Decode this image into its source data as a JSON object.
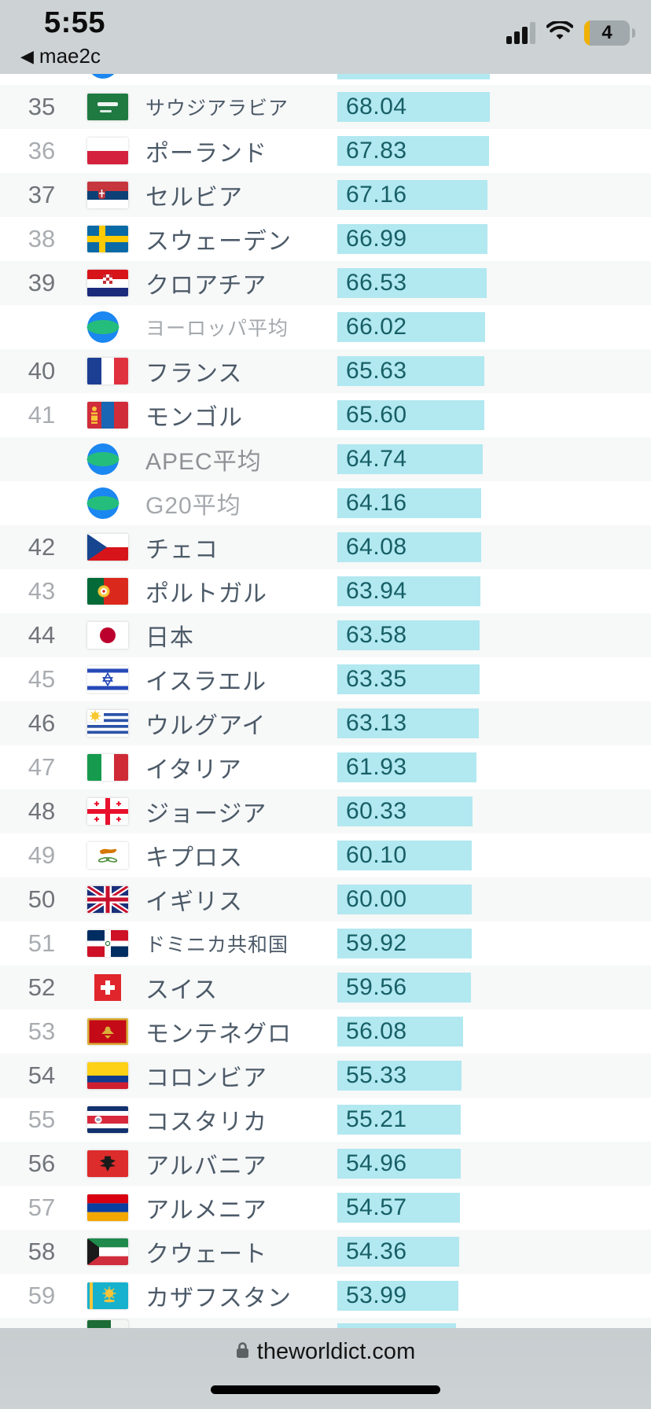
{
  "status_bar": {
    "time": "5:55",
    "back_arrow": "◀",
    "back_label": "mae2c",
    "battery_level": "4",
    "signal_bars_filled": 3,
    "signal_bars_total": 4
  },
  "colors": {
    "bar_fill": "#b2e8f0",
    "value_text": "#175f66",
    "country_text": "#4c5a68",
    "rank_dark": "#70757a",
    "rank_light": "#a9adb1",
    "status_bar_bg": "#cdd2d4",
    "low_battery_yellow": "#f0b100"
  },
  "chart_data": {
    "type": "bar",
    "orientation": "horizontal",
    "categories": [
      "サウジアラビア",
      "ポーランド",
      "セルビア",
      "スウェーデン",
      "クロアチア",
      "ヨーロッパ平均",
      "フランス",
      "モンゴル",
      "APEC平均",
      "G20平均",
      "チェコ",
      "ポルトガル",
      "日本",
      "イスラエル",
      "ウルグアイ",
      "イタリア",
      "ジョージア",
      "キプロス",
      "イギリス",
      "ドミニカ共和国",
      "スイス",
      "モンテネグロ",
      "コロンビア",
      "コスタリカ",
      "アルバニア",
      "アルメニア",
      "クウェート",
      "カザフスタン"
    ],
    "values": [
      68.04,
      67.83,
      67.16,
      66.99,
      66.53,
      66.02,
      65.63,
      65.6,
      64.74,
      64.16,
      64.08,
      63.94,
      63.58,
      63.35,
      63.13,
      61.93,
      60.33,
      60.1,
      60.0,
      59.92,
      59.56,
      56.08,
      55.33,
      55.21,
      54.96,
      54.57,
      54.36,
      53.99
    ],
    "ranks": [
      35,
      36,
      37,
      38,
      39,
      null,
      40,
      41,
      null,
      null,
      42,
      43,
      44,
      45,
      46,
      47,
      48,
      49,
      50,
      51,
      52,
      53,
      54,
      55,
      56,
      57,
      58,
      59
    ]
  },
  "ranking_list": {
    "partial_top": {
      "flag": "globe",
      "value": 68.1
    },
    "rows": [
      {
        "rank": "35",
        "name": "サウジアラビア",
        "value": "68.04",
        "flag": "sa",
        "type": "country"
      },
      {
        "rank": "36",
        "name": "ポーランド",
        "value": "67.83",
        "flag": "pl",
        "type": "country"
      },
      {
        "rank": "37",
        "name": "セルビア",
        "value": "67.16",
        "flag": "rs",
        "type": "country"
      },
      {
        "rank": "38",
        "name": "スウェーデン",
        "value": "66.99",
        "flag": "se",
        "type": "country"
      },
      {
        "rank": "39",
        "name": "クロアチア",
        "value": "66.53",
        "flag": "hr",
        "type": "country"
      },
      {
        "rank": "",
        "name": "ヨーロッパ平均",
        "value": "66.02",
        "flag": "globe",
        "type": "average"
      },
      {
        "rank": "40",
        "name": "フランス",
        "value": "65.63",
        "flag": "fr",
        "type": "country"
      },
      {
        "rank": "41",
        "name": "モンゴル",
        "value": "65.60",
        "flag": "mn",
        "type": "country"
      },
      {
        "rank": "",
        "name": "APEC平均",
        "value": "64.74",
        "flag": "globe",
        "type": "average"
      },
      {
        "rank": "",
        "name": "G20平均",
        "value": "64.16",
        "flag": "globe",
        "type": "average"
      },
      {
        "rank": "42",
        "name": "チェコ",
        "value": "64.08",
        "flag": "cz",
        "type": "country"
      },
      {
        "rank": "43",
        "name": "ポルトガル",
        "value": "63.94",
        "flag": "pt",
        "type": "country"
      },
      {
        "rank": "44",
        "name": "日本",
        "value": "63.58",
        "flag": "jp",
        "type": "country"
      },
      {
        "rank": "45",
        "name": "イスラエル",
        "value": "63.35",
        "flag": "il",
        "type": "country"
      },
      {
        "rank": "46",
        "name": "ウルグアイ",
        "value": "63.13",
        "flag": "uy",
        "type": "country"
      },
      {
        "rank": "47",
        "name": "イタリア",
        "value": "61.93",
        "flag": "it",
        "type": "country"
      },
      {
        "rank": "48",
        "name": "ジョージア",
        "value": "60.33",
        "flag": "ge",
        "type": "country"
      },
      {
        "rank": "49",
        "name": "キプロス",
        "value": "60.10",
        "flag": "cy",
        "type": "country"
      },
      {
        "rank": "50",
        "name": "イギリス",
        "value": "60.00",
        "flag": "gb",
        "type": "country"
      },
      {
        "rank": "51",
        "name": "ドミニカ共和国",
        "value": "59.92",
        "flag": "do",
        "type": "country"
      },
      {
        "rank": "52",
        "name": "スイス",
        "value": "59.56",
        "flag": "ch",
        "type": "country"
      },
      {
        "rank": "53",
        "name": "モンテネグロ",
        "value": "56.08",
        "flag": "me",
        "type": "country"
      },
      {
        "rank": "54",
        "name": "コロンビア",
        "value": "55.33",
        "flag": "co",
        "type": "country"
      },
      {
        "rank": "55",
        "name": "コスタリカ",
        "value": "55.21",
        "flag": "cr",
        "type": "country"
      },
      {
        "rank": "56",
        "name": "アルバニア",
        "value": "54.96",
        "flag": "al",
        "type": "country"
      },
      {
        "rank": "57",
        "name": "アルメニア",
        "value": "54.57",
        "flag": "am",
        "type": "country"
      },
      {
        "rank": "58",
        "name": "クウェート",
        "value": "54.36",
        "flag": "kw",
        "type": "country"
      },
      {
        "rank": "59",
        "name": "カザフスタン",
        "value": "53.99",
        "flag": "kz",
        "type": "country"
      }
    ],
    "partial_bottom": {
      "flag": "green-country",
      "value": 53.0
    }
  },
  "footer": {
    "url": "theworldict.com"
  }
}
